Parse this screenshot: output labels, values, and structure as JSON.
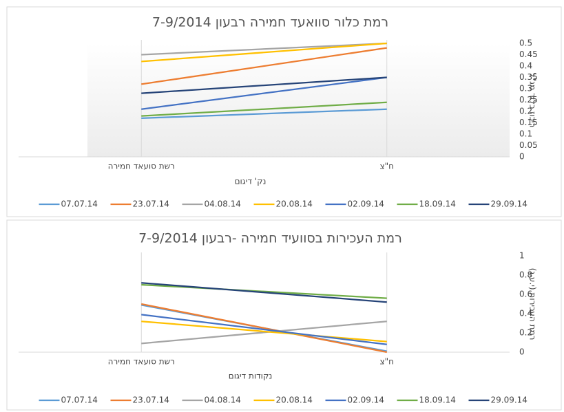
{
  "chart_data": [
    {
      "type": "line",
      "title": "רמת כלור סוואעד חמירה רבעון 7-9/2014",
      "x_label": "נק' דיגום",
      "y_label": "ריכוז כלור מג\"ל",
      "categories": [
        "רשת סועאד חמירה",
        "ח\"צ"
      ],
      "series": [
        {
          "name": "07.07.14",
          "color": "#5b9bd5",
          "values": [
            0.17,
            0.21
          ]
        },
        {
          "name": "23.07.14",
          "color": "#ed7d31",
          "values": [
            0.32,
            0.48
          ]
        },
        {
          "name": "04.08.14",
          "color": "#a5a5a5",
          "values": [
            0.45,
            0.5
          ]
        },
        {
          "name": "20.08.14",
          "color": "#ffc000",
          "values": [
            0.42,
            0.5
          ]
        },
        {
          "name": "02.09.14",
          "color": "#4472c4",
          "values": [
            0.21,
            0.35
          ]
        },
        {
          "name": "18.09.14",
          "color": "#70ad47",
          "values": [
            0.18,
            0.24
          ]
        },
        {
          "name": "29.09.14",
          "color": "#264478",
          "values": [
            0.28,
            0.35
          ]
        }
      ],
      "ylim": [
        0,
        0.5
      ],
      "yticks": [
        0,
        0.05,
        0.1,
        0.15,
        0.2,
        0.25,
        0.3,
        0.35,
        0.4,
        0.45,
        0.5
      ],
      "legend": "bottom",
      "grid": false
    },
    {
      "type": "line",
      "title": "רמת העכירות בסוועיד חמירה -רבעון 7-9/2014",
      "x_label": "נקודות דיגום",
      "y_label": "רמת העכירות (י.ע.נ)",
      "categories": [
        "רשת סועאד חמירה",
        "ח\"צ"
      ],
      "series": [
        {
          "name": "07.07.14",
          "color": "#5b9bd5",
          "values": [
            0.49,
            0.01
          ]
        },
        {
          "name": "23.07.14",
          "color": "#ed7d31",
          "values": [
            0.5,
            0
          ]
        },
        {
          "name": "04.08.14",
          "color": "#a5a5a5",
          "values": [
            0.09,
            0.32
          ]
        },
        {
          "name": "20.08.14",
          "color": "#ffc000",
          "values": [
            0.32,
            0.11
          ]
        },
        {
          "name": "02.09.14",
          "color": "#4472c4",
          "values": [
            0.39,
            0.08
          ]
        },
        {
          "name": "18.09.14",
          "color": "#70ad47",
          "values": [
            0.7,
            0.56
          ]
        },
        {
          "name": "29.09.14",
          "color": "#264478",
          "values": [
            0.72,
            0.52
          ]
        }
      ],
      "ylim": [
        0,
        1
      ],
      "yticks": [
        0,
        0.2,
        0.4,
        0.6,
        0.8,
        1
      ],
      "legend": "bottom",
      "grid": false
    }
  ]
}
